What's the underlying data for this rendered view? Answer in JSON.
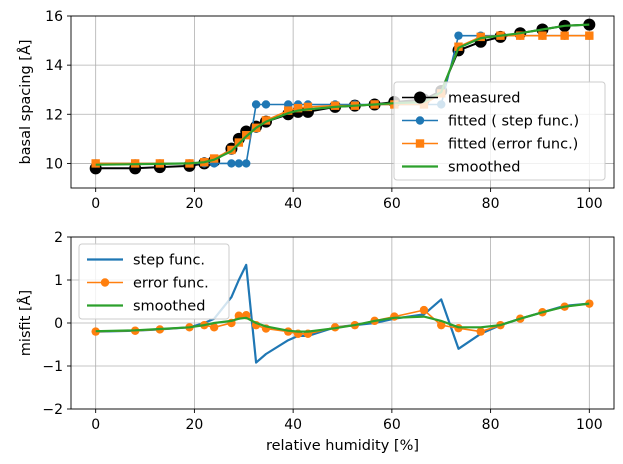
{
  "chart_data": [
    {
      "type": "line",
      "xlabel": "",
      "ylabel": "basal spacing [Å]",
      "xlim": [
        -5,
        105
      ],
      "ylim": [
        9,
        16
      ],
      "xticks": [
        "0",
        "20",
        "40",
        "60",
        "80",
        "100"
      ],
      "yticks": [
        "10",
        "12",
        "14",
        "16"
      ],
      "grid": true,
      "legend_position": "center-right",
      "series": [
        {
          "name": "measured",
          "color": "#000000",
          "marker": "circle",
          "x": [
            0,
            8,
            13,
            19,
            22,
            24,
            27.5,
            29,
            30.5,
            32.5,
            34.5,
            39,
            41,
            43,
            48.5,
            52.5,
            56.5,
            60.5,
            66.5,
            70,
            73.5,
            78,
            82,
            86,
            90.5,
            95,
            100
          ],
          "y": [
            9.8,
            9.8,
            9.85,
            9.9,
            10.0,
            10.1,
            10.6,
            11.0,
            11.3,
            11.5,
            11.7,
            12.0,
            12.1,
            12.1,
            12.3,
            12.35,
            12.4,
            12.5,
            12.6,
            12.95,
            14.6,
            14.95,
            15.15,
            15.3,
            15.45,
            15.6,
            15.65
          ]
        },
        {
          "name": "fitted ( step func.)",
          "color": "#1f77b4",
          "marker": "circle",
          "x": [
            0,
            8,
            13,
            19,
            22,
            24,
            27.5,
            29,
            30.5,
            32.5,
            34.5,
            39,
            41,
            43,
            48.5,
            52.5,
            56.5,
            60.5,
            66.5,
            70,
            73.5,
            78,
            82,
            86,
            90.5,
            95,
            100
          ],
          "y": [
            10.0,
            10.0,
            10.0,
            10.0,
            10.0,
            10.0,
            10.0,
            10.0,
            10.0,
            12.4,
            12.4,
            12.4,
            12.4,
            12.4,
            12.4,
            12.4,
            12.4,
            12.4,
            12.4,
            12.4,
            15.2,
            15.2,
            15.2,
            15.2,
            15.2,
            15.2,
            15.2
          ]
        },
        {
          "name": "fitted (error func.)",
          "color": "#ff7f0e",
          "marker": "square",
          "x": [
            0,
            8,
            13,
            19,
            22,
            24,
            27.5,
            29,
            30.5,
            32.5,
            34.5,
            39,
            41,
            43,
            48.5,
            52.5,
            56.5,
            60.5,
            66.5,
            70,
            73.5,
            78,
            82,
            86,
            90.5,
            95,
            100
          ],
          "y": [
            10.0,
            10.0,
            10.0,
            10.0,
            10.05,
            10.2,
            10.55,
            10.85,
            11.15,
            11.45,
            11.75,
            12.15,
            12.25,
            12.3,
            12.35,
            12.35,
            12.4,
            12.4,
            12.4,
            12.85,
            14.75,
            15.15,
            15.2,
            15.2,
            15.2,
            15.2,
            15.2
          ]
        },
        {
          "name": "smoothed",
          "color": "#2ca02c",
          "marker": "none",
          "x": [
            0,
            8,
            13,
            19,
            22,
            24,
            27.5,
            29,
            30.5,
            32.5,
            34.5,
            39,
            41,
            43,
            48.5,
            52.5,
            56.5,
            60.5,
            66.5,
            70,
            73.5,
            78,
            82,
            86,
            90.5,
            95,
            100
          ],
          "y": [
            9.95,
            9.97,
            9.98,
            10.0,
            10.05,
            10.15,
            10.5,
            10.8,
            11.1,
            11.45,
            11.7,
            12.05,
            12.15,
            12.2,
            12.3,
            12.35,
            12.4,
            12.45,
            12.5,
            12.9,
            14.7,
            15.1,
            15.2,
            15.3,
            15.45,
            15.6,
            15.65
          ]
        }
      ]
    },
    {
      "type": "line",
      "xlabel": "relative humidity [%]",
      "ylabel": "misfit [Å]",
      "xlim": [
        -5,
        105
      ],
      "ylim": [
        -2,
        2
      ],
      "xticks": [
        "0",
        "20",
        "40",
        "60",
        "80",
        "100"
      ],
      "yticks": [
        "−2",
        "−1",
        "0",
        "1",
        "2"
      ],
      "grid": true,
      "legend_position": "upper-left",
      "series": [
        {
          "name": "step func.",
          "color": "#1f77b4",
          "marker": "none",
          "x": [
            0,
            8,
            13,
            19,
            22,
            24,
            27.5,
            29,
            30.5,
            32.5,
            34.5,
            39,
            41,
            43,
            48.5,
            52.5,
            56.5,
            60.5,
            66.5,
            70,
            73.5,
            78,
            82,
            86,
            90.5,
            95,
            100
          ],
          "y": [
            -0.2,
            -0.18,
            -0.15,
            -0.1,
            0.0,
            0.1,
            0.6,
            1.0,
            1.35,
            -0.92,
            -0.72,
            -0.4,
            -0.3,
            -0.3,
            -0.1,
            -0.05,
            0.0,
            0.1,
            0.2,
            0.55,
            -0.6,
            -0.25,
            -0.05,
            0.1,
            0.25,
            0.4,
            0.45
          ]
        },
        {
          "name": "error func.",
          "color": "#ff7f0e",
          "marker": "circle",
          "x": [
            0,
            8,
            13,
            19,
            22,
            24,
            27.5,
            29,
            30.5,
            32.5,
            34.5,
            39,
            41,
            43,
            48.5,
            52.5,
            56.5,
            60.5,
            66.5,
            70,
            73.5,
            78,
            82,
            86,
            90.5,
            95,
            100
          ],
          "y": [
            -0.2,
            -0.18,
            -0.15,
            -0.1,
            -0.05,
            -0.1,
            0.0,
            0.17,
            0.18,
            -0.05,
            -0.13,
            -0.2,
            -0.25,
            -0.25,
            -0.1,
            -0.05,
            0.05,
            0.15,
            0.3,
            -0.05,
            -0.12,
            -0.2,
            -0.05,
            0.1,
            0.25,
            0.38,
            0.45
          ]
        },
        {
          "name": "smoothed",
          "color": "#2ca02c",
          "marker": "none",
          "x": [
            0,
            8,
            13,
            19,
            22,
            24,
            27.5,
            29,
            30.5,
            32.5,
            34.5,
            39,
            41,
            43,
            48.5,
            52.5,
            56.5,
            60.5,
            66.5,
            70,
            73.5,
            78,
            82,
            86,
            90.5,
            95,
            100
          ],
          "y": [
            -0.19,
            -0.17,
            -0.14,
            -0.1,
            -0.05,
            0.0,
            0.05,
            0.1,
            0.12,
            0.0,
            -0.08,
            -0.18,
            -0.2,
            -0.2,
            -0.12,
            -0.05,
            0.05,
            0.12,
            0.15,
            0.05,
            -0.1,
            -0.1,
            -0.05,
            0.1,
            0.25,
            0.38,
            0.45
          ]
        }
      ]
    }
  ]
}
